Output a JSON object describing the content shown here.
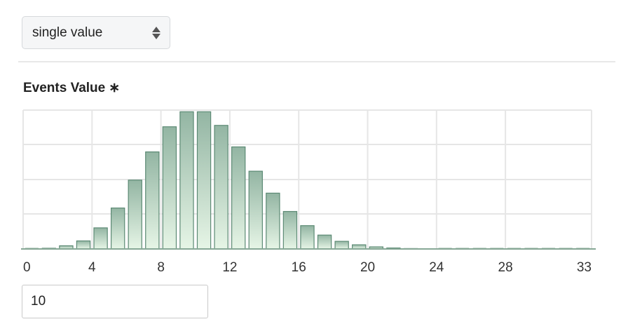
{
  "mode_select": {
    "selected": "single value"
  },
  "field": {
    "label": "Events Value",
    "required_marker": "∗"
  },
  "chart_data": {
    "type": "bar",
    "xlim": [
      0,
      33
    ],
    "x_ticks": [
      0,
      4,
      8,
      12,
      16,
      20,
      24,
      28,
      33
    ],
    "x": [
      0,
      1,
      2,
      3,
      4,
      5,
      6,
      7,
      8,
      9,
      10,
      11,
      12,
      13,
      14,
      15,
      16,
      17,
      18,
      19,
      20,
      21,
      22,
      23,
      24,
      25,
      26,
      27,
      28,
      29,
      30,
      31,
      32,
      33
    ],
    "values": [
      0.0,
      0.005,
      0.023,
      0.058,
      0.152,
      0.295,
      0.496,
      0.699,
      0.88,
      0.988,
      0.988,
      0.89,
      0.735,
      0.56,
      0.402,
      0.27,
      0.168,
      0.1,
      0.055,
      0.03,
      0.015,
      0.007,
      0.003,
      0.001,
      0.0,
      0.0,
      0.0,
      0.0,
      0.0,
      0.0,
      0.0,
      0.0,
      0.0,
      0.0
    ],
    "ylim": [
      0,
      1
    ],
    "grid": true,
    "colors": {
      "bar_top": "#93b5a3",
      "bar_bottom": "#e6f5e6",
      "bar_stroke": "#5c8a74",
      "grid": "#e6e6e6",
      "axis": "#87a896"
    }
  },
  "value_input": {
    "value": "10"
  }
}
